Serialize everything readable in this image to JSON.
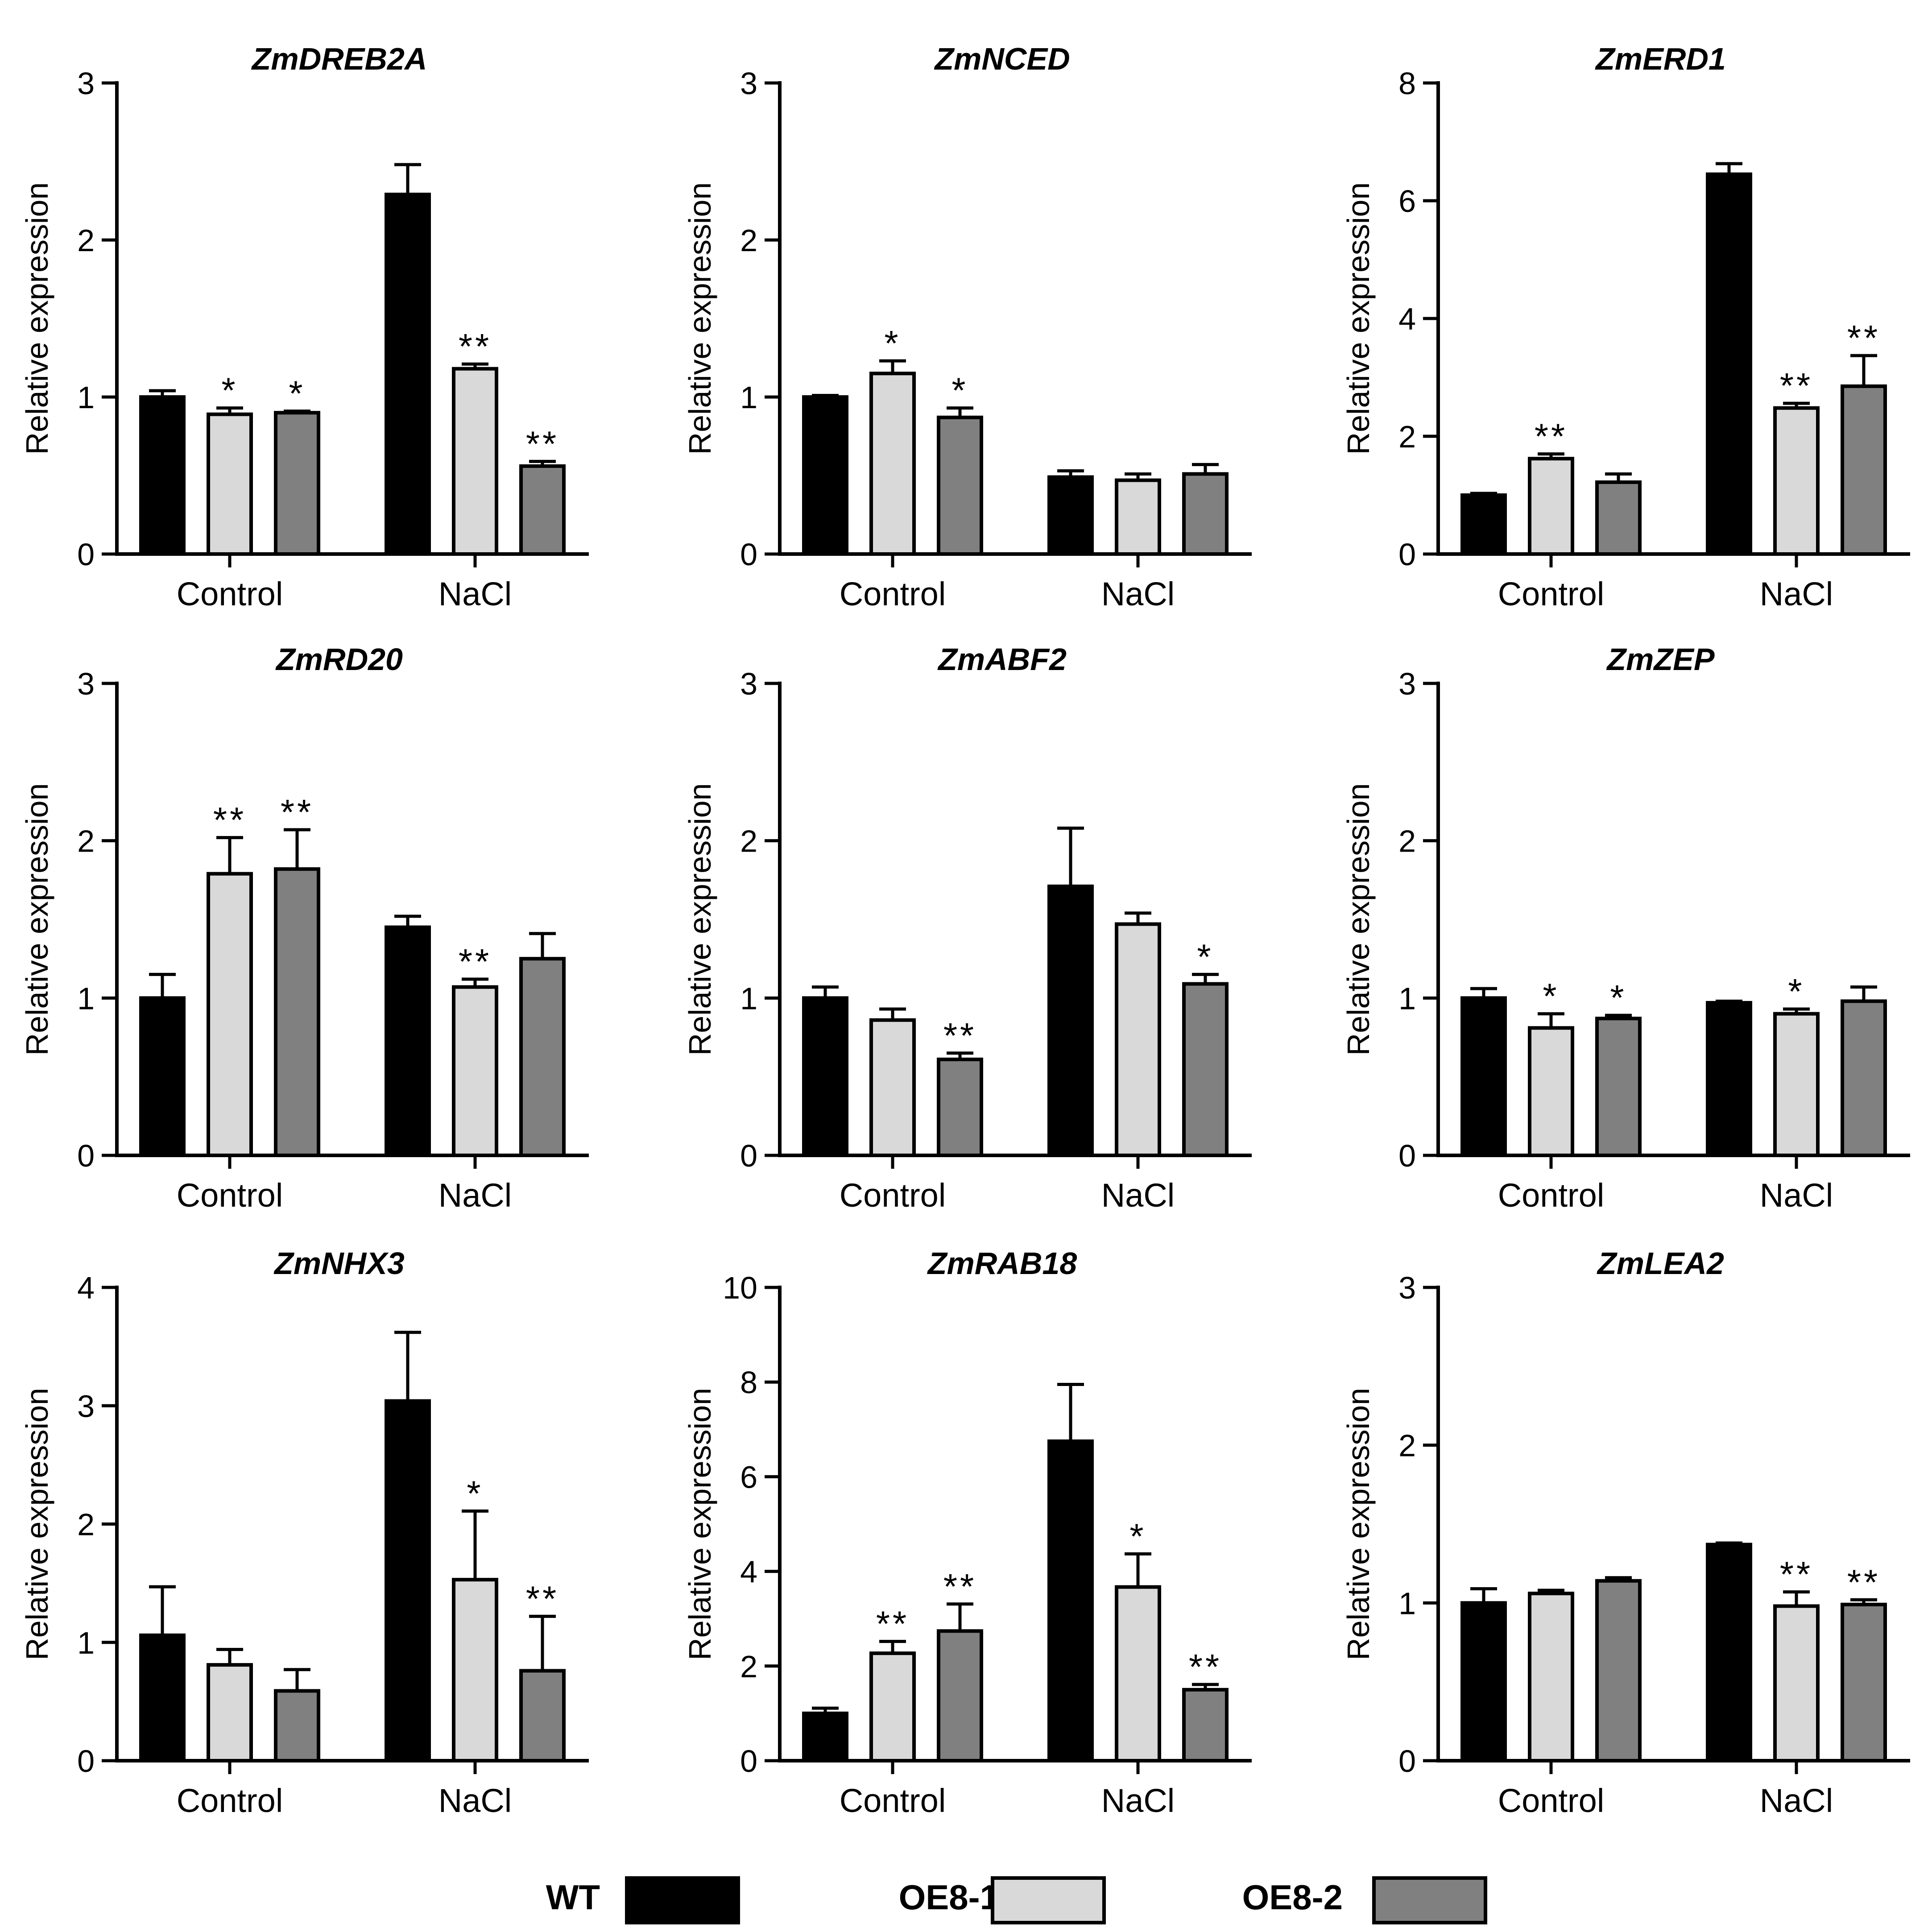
{
  "legend": [
    {
      "name": "WT",
      "color": "#000000"
    },
    {
      "name": "OE8-1",
      "color": "#d9d9d9"
    },
    {
      "name": "OE8-2",
      "color": "#808080"
    }
  ],
  "chart_data": [
    {
      "type": "bar",
      "title": "ZmDREB2A",
      "xlabel": "",
      "ylabel": "Relative expression",
      "categories": [
        "Control",
        "NaCl"
      ],
      "ylim": [
        0,
        3
      ],
      "yticks": [
        "0",
        "1",
        "2",
        "3"
      ],
      "series": [
        {
          "name": "WT",
          "values": [
            1.0,
            2.29
          ],
          "errors": [
            0.04,
            0.19
          ],
          "sig": [
            "",
            ""
          ]
        },
        {
          "name": "OE8-1",
          "values": [
            0.89,
            1.18
          ],
          "errors": [
            0.04,
            0.03
          ],
          "sig": [
            "*",
            "**"
          ]
        },
        {
          "name": "OE8-2",
          "values": [
            0.9,
            0.56
          ],
          "errors": [
            0.01,
            0.03
          ],
          "sig": [
            "*",
            "**"
          ]
        }
      ]
    },
    {
      "type": "bar",
      "title": "ZmNCED",
      "xlabel": "",
      "ylabel": "Relative expression",
      "categories": [
        "Control",
        "NaCl"
      ],
      "ylim": [
        0,
        3
      ],
      "yticks": [
        "0",
        "1",
        "2",
        "3"
      ],
      "series": [
        {
          "name": "WT",
          "values": [
            1.0,
            0.49
          ],
          "errors": [
            0.01,
            0.04
          ],
          "sig": [
            "",
            ""
          ]
        },
        {
          "name": "OE8-1",
          "values": [
            1.15,
            0.47
          ],
          "errors": [
            0.08,
            0.04
          ],
          "sig": [
            "*",
            ""
          ]
        },
        {
          "name": "OE8-2",
          "values": [
            0.87,
            0.51
          ],
          "errors": [
            0.06,
            0.06
          ],
          "sig": [
            "*",
            ""
          ]
        }
      ]
    },
    {
      "type": "bar",
      "title": "ZmERD1",
      "xlabel": "",
      "ylabel": "Relative expression",
      "categories": [
        "Control",
        "NaCl"
      ],
      "ylim": [
        0,
        8
      ],
      "yticks": [
        "0",
        "2",
        "4",
        "6",
        "8"
      ],
      "series": [
        {
          "name": "WT",
          "values": [
            1.0,
            6.45
          ],
          "errors": [
            0.03,
            0.18
          ],
          "sig": [
            "",
            ""
          ]
        },
        {
          "name": "OE8-1",
          "values": [
            1.62,
            2.48
          ],
          "errors": [
            0.08,
            0.08
          ],
          "sig": [
            "**",
            "**"
          ]
        },
        {
          "name": "OE8-2",
          "values": [
            1.22,
            2.85
          ],
          "errors": [
            0.14,
            0.52
          ],
          "sig": [
            "",
            "**"
          ]
        }
      ]
    },
    {
      "type": "bar",
      "title": "ZmRD20",
      "xlabel": "",
      "ylabel": "Relative expression",
      "categories": [
        "Control",
        "NaCl"
      ],
      "ylim": [
        0,
        3
      ],
      "yticks": [
        "0",
        "1",
        "2",
        "3"
      ],
      "series": [
        {
          "name": "WT",
          "values": [
            1.0,
            1.45
          ],
          "errors": [
            0.15,
            0.07
          ],
          "sig": [
            "",
            ""
          ]
        },
        {
          "name": "OE8-1",
          "values": [
            1.79,
            1.07
          ],
          "errors": [
            0.23,
            0.05
          ],
          "sig": [
            "**",
            "**"
          ]
        },
        {
          "name": "OE8-2",
          "values": [
            1.82,
            1.25
          ],
          "errors": [
            0.25,
            0.16
          ],
          "sig": [
            "**",
            ""
          ]
        }
      ]
    },
    {
      "type": "bar",
      "title": "ZmABF2",
      "xlabel": "",
      "ylabel": "Relative expression",
      "categories": [
        "Control",
        "NaCl"
      ],
      "ylim": [
        0,
        3
      ],
      "yticks": [
        "0",
        "1",
        "2",
        "3"
      ],
      "series": [
        {
          "name": "WT",
          "values": [
            1.0,
            1.71
          ],
          "errors": [
            0.07,
            0.37
          ],
          "sig": [
            "",
            ""
          ]
        },
        {
          "name": "OE8-1",
          "values": [
            0.86,
            1.47
          ],
          "errors": [
            0.07,
            0.07
          ],
          "sig": [
            "",
            ""
          ]
        },
        {
          "name": "OE8-2",
          "values": [
            0.61,
            1.09
          ],
          "errors": [
            0.04,
            0.06
          ],
          "sig": [
            "**",
            "*"
          ]
        }
      ]
    },
    {
      "type": "bar",
      "title": "ZmZEP",
      "xlabel": "",
      "ylabel": "Relative expression",
      "categories": [
        "Control",
        "NaCl"
      ],
      "ylim": [
        0,
        3
      ],
      "yticks": [
        "0",
        "1",
        "2",
        "3"
      ],
      "series": [
        {
          "name": "WT",
          "values": [
            1.0,
            0.97
          ],
          "errors": [
            0.06,
            0.01
          ],
          "sig": [
            "",
            ""
          ]
        },
        {
          "name": "OE8-1",
          "values": [
            0.81,
            0.9
          ],
          "errors": [
            0.09,
            0.03
          ],
          "sig": [
            "*",
            "*"
          ]
        },
        {
          "name": "OE8-2",
          "values": [
            0.87,
            0.98
          ],
          "errors": [
            0.02,
            0.09
          ],
          "sig": [
            "*",
            ""
          ]
        }
      ]
    },
    {
      "type": "bar",
      "title": "ZmNHX3",
      "xlabel": "",
      "ylabel": "Relative expression",
      "categories": [
        "Control",
        "NaCl"
      ],
      "ylim": [
        0,
        4
      ],
      "yticks": [
        "0",
        "1",
        "2",
        "3",
        "4"
      ],
      "series": [
        {
          "name": "WT",
          "values": [
            1.06,
            3.04
          ],
          "errors": [
            0.41,
            0.58
          ],
          "sig": [
            "",
            ""
          ]
        },
        {
          "name": "OE8-1",
          "values": [
            0.81,
            1.53
          ],
          "errors": [
            0.13,
            0.58
          ],
          "sig": [
            "",
            "*"
          ]
        },
        {
          "name": "OE8-2",
          "values": [
            0.59,
            0.76
          ],
          "errors": [
            0.18,
            0.46
          ],
          "sig": [
            "",
            "**"
          ]
        }
      ]
    },
    {
      "type": "bar",
      "title": "ZmRAB18",
      "xlabel": "",
      "ylabel": "Relative expression",
      "categories": [
        "Control",
        "NaCl"
      ],
      "ylim": [
        0,
        10
      ],
      "yticks": [
        "0",
        "2",
        "4",
        "6",
        "8",
        "10"
      ],
      "series": [
        {
          "name": "WT",
          "values": [
            1.0,
            6.75
          ],
          "errors": [
            0.11,
            1.2
          ],
          "sig": [
            "",
            ""
          ]
        },
        {
          "name": "OE8-1",
          "values": [
            2.27,
            3.67
          ],
          "errors": [
            0.25,
            0.7
          ],
          "sig": [
            "**",
            "*"
          ]
        },
        {
          "name": "OE8-2",
          "values": [
            2.74,
            1.5
          ],
          "errors": [
            0.57,
            0.11
          ],
          "sig": [
            "**",
            "**"
          ]
        }
      ]
    },
    {
      "type": "bar",
      "title": "ZmLEA2",
      "xlabel": "",
      "ylabel": "Relative expression",
      "categories": [
        "Control",
        "NaCl"
      ],
      "ylim": [
        0,
        3
      ],
      "yticks": [
        "0",
        "1",
        "2",
        "3"
      ],
      "series": [
        {
          "name": "WT",
          "values": [
            1.0,
            1.37
          ],
          "errors": [
            0.09,
            0.01
          ],
          "sig": [
            "",
            ""
          ]
        },
        {
          "name": "OE8-1",
          "values": [
            1.06,
            0.98
          ],
          "errors": [
            0.02,
            0.09
          ],
          "sig": [
            "",
            "**"
          ]
        },
        {
          "name": "OE8-2",
          "values": [
            1.14,
            0.99
          ],
          "errors": [
            0.02,
            0.03
          ],
          "sig": [
            "",
            "**"
          ]
        }
      ]
    }
  ]
}
